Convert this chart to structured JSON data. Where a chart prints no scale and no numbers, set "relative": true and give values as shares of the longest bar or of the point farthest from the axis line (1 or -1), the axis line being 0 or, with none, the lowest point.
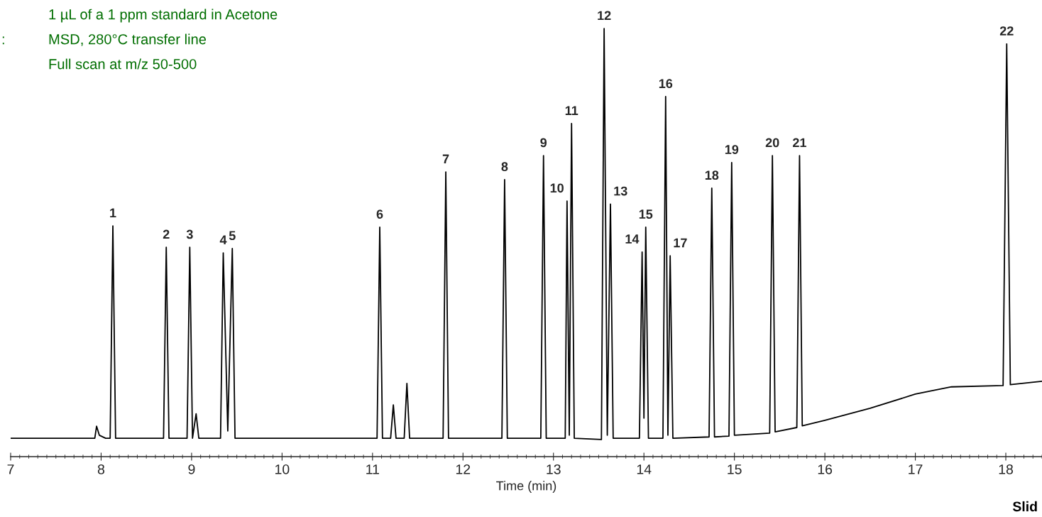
{
  "chart_data": {
    "type": "line",
    "relative": true,
    "xlabel": "Time (min)",
    "xlim": [
      7,
      18.4
    ],
    "xticks": [
      7,
      8,
      9,
      10,
      11,
      12,
      13,
      14,
      15,
      16,
      17,
      18
    ],
    "grid": false,
    "legend": false,
    "marker": "none",
    "line_style": "solid",
    "series": [
      {
        "color": "#000000",
        "x": [
          7.0,
          7.93,
          7.95,
          7.98,
          8.05,
          8.1,
          8.13,
          8.16,
          8.69,
          8.72,
          8.75,
          8.95,
          8.98,
          9.01,
          9.05,
          9.08,
          9.32,
          9.35,
          9.4,
          9.45,
          9.48,
          11.05,
          11.08,
          11.11,
          11.2,
          11.23,
          11.26,
          11.35,
          11.38,
          11.41,
          11.78,
          11.81,
          11.84,
          12.43,
          12.46,
          12.49,
          12.86,
          12.89,
          12.92,
          13.13,
          13.15,
          13.175,
          13.2,
          13.23,
          13.53,
          13.56,
          13.595,
          13.63,
          13.66,
          13.95,
          13.98,
          14.0,
          14.02,
          14.05,
          14.21,
          14.24,
          14.265,
          14.29,
          14.32,
          14.72,
          14.75,
          14.78,
          14.94,
          14.97,
          15.0,
          15.39,
          15.42,
          15.45,
          15.69,
          15.72,
          15.75,
          16.0,
          16.5,
          17.0,
          17.4,
          17.97,
          18.01,
          18.05,
          18.4
        ],
        "values": [
          0.043,
          0.043,
          0.071,
          0.05,
          0.043,
          0.043,
          0.539,
          0.043,
          0.043,
          0.489,
          0.043,
          0.043,
          0.489,
          0.043,
          0.1,
          0.043,
          0.043,
          0.476,
          0.06,
          0.486,
          0.043,
          0.043,
          0.536,
          0.043,
          0.043,
          0.121,
          0.043,
          0.043,
          0.171,
          0.043,
          0.043,
          0.665,
          0.043,
          0.043,
          0.647,
          0.043,
          0.043,
          0.703,
          0.043,
          0.043,
          0.597,
          0.05,
          0.778,
          0.043,
          0.04,
          1,
          0.05,
          0.59,
          0.043,
          0.043,
          0.478,
          0.09,
          0.536,
          0.043,
          0.043,
          0.841,
          0.05,
          0.469,
          0.043,
          0.046,
          0.627,
          0.046,
          0.048,
          0.687,
          0.05,
          0.055,
          0.703,
          0.058,
          0.068,
          0.703,
          0.072,
          0.085,
          0.113,
          0.146,
          0.163,
          0.166,
          0.964,
          0.168,
          0.176
        ]
      }
    ],
    "annotations": [
      "1 µL of a 1 ppm standard in Acetone",
      "MSD, 280°C transfer line",
      "Full scan at m/z 50-500",
      ":",
      "Slid",
      {
        "text": "1",
        "x": 8.13,
        "y": 0.539
      },
      {
        "text": "2",
        "x": 8.72,
        "y": 0.489
      },
      {
        "text": "3",
        "x": 8.98,
        "y": 0.489
      },
      {
        "text": "4",
        "x": 9.35,
        "y": 0.476
      },
      {
        "text": "5",
        "x": 9.45,
        "y": 0.486
      },
      {
        "text": "6",
        "x": 11.08,
        "y": 0.536
      },
      {
        "text": "7",
        "x": 11.81,
        "y": 0.665
      },
      {
        "text": "8",
        "x": 12.46,
        "y": 0.647
      },
      {
        "text": "9",
        "x": 12.89,
        "y": 0.703
      },
      {
        "text": "10",
        "x": 13.15,
        "y": 0.597
      },
      {
        "text": "11",
        "x": 13.2,
        "y": 0.778
      },
      {
        "text": "12",
        "x": 13.56,
        "y": 1
      },
      {
        "text": "13",
        "x": 13.63,
        "y": 0.59
      },
      {
        "text": "14",
        "x": 13.98,
        "y": 0.478
      },
      {
        "text": "15",
        "x": 14.02,
        "y": 0.536
      },
      {
        "text": "16",
        "x": 14.24,
        "y": 0.841
      },
      {
        "text": "17",
        "x": 14.29,
        "y": 0.469
      },
      {
        "text": "18",
        "x": 14.75,
        "y": 0.627
      },
      {
        "text": "19",
        "x": 14.97,
        "y": 0.687
      },
      {
        "text": "20",
        "x": 15.42,
        "y": 0.703
      },
      {
        "text": "21",
        "x": 15.72,
        "y": 0.703
      },
      {
        "text": "22",
        "x": 18.01,
        "y": 0.964
      }
    ]
  }
}
